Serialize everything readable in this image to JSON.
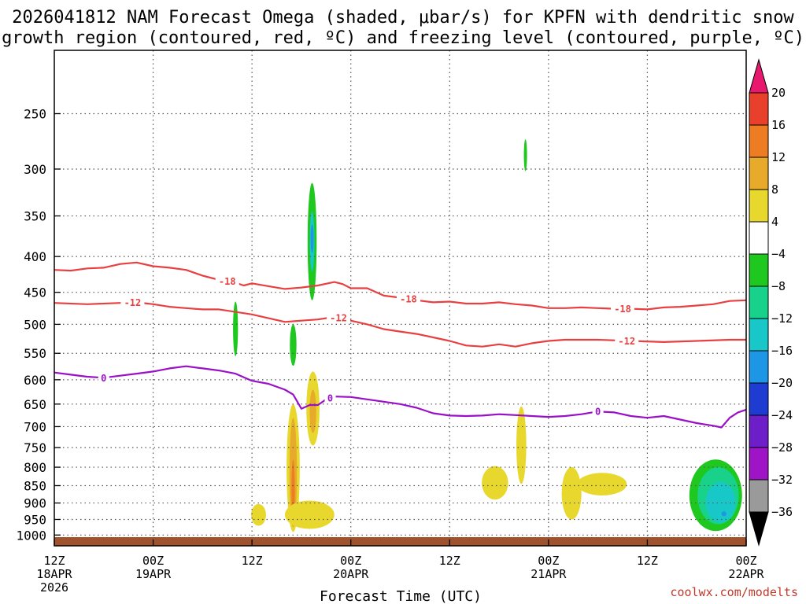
{
  "chart_data": {
    "type": "heatmap",
    "title_lines": [
      "2026041812 NAM Forecast Omega (shaded, μbar/s) for KPFN with dendritic snow",
      "growth region (contoured, red, ºC) and freezing level (contoured, purple, ºC)"
    ],
    "xlabel": "Forecast Time (UTC)",
    "credit": "coolwx.com/modelts",
    "x_range_hours": [
      0,
      84
    ],
    "y_range_hPa": [
      1025,
      200
    ],
    "x_ticks": [
      {
        "h": 0,
        "line1": "12Z",
        "line2": "18APR",
        "line3": "2026"
      },
      {
        "h": 12,
        "line1": "00Z",
        "line2": "19APR",
        "line3": ""
      },
      {
        "h": 24,
        "line1": "12Z",
        "line2": "",
        "line3": ""
      },
      {
        "h": 36,
        "line1": "00Z",
        "line2": "20APR",
        "line3": ""
      },
      {
        "h": 48,
        "line1": "12Z",
        "line2": "",
        "line3": ""
      },
      {
        "h": 60,
        "line1": "00Z",
        "line2": "21APR",
        "line3": ""
      },
      {
        "h": 72,
        "line1": "12Z",
        "line2": "",
        "line3": ""
      },
      {
        "h": 84,
        "line1": "00Z",
        "line2": "22APR",
        "line3": ""
      }
    ],
    "y_ticks": [
      250,
      300,
      350,
      400,
      450,
      500,
      550,
      600,
      650,
      700,
      750,
      800,
      850,
      900,
      950,
      1000
    ],
    "y_tick_labels": [
      "250",
      "300",
      "350",
      "400",
      "450",
      "500",
      "550",
      "600",
      "650",
      "700",
      "750",
      "800",
      "850",
      "900",
      "950",
      "1000"
    ],
    "colorbar": {
      "labels": [
        "20",
        "16",
        "12",
        "8",
        "4",
        "−4",
        "−8",
        "−12",
        "−16",
        "−20",
        "−24",
        "−28",
        "−32",
        "−36"
      ],
      "bins": [
        {
          "color": "#e8186e"
        },
        {
          "color": "#e8402a"
        },
        {
          "color": "#ee7c22"
        },
        {
          "color": "#e8aa2a"
        },
        {
          "color": "#e8d82e"
        },
        {
          "color": "#ffffff"
        },
        {
          "color": "#1ec81e"
        },
        {
          "color": "#18d28c"
        },
        {
          "color": "#18c8c8"
        },
        {
          "color": "#1e96e6"
        },
        {
          "color": "#1e3cd2"
        },
        {
          "color": "#6e1ec8"
        },
        {
          "color": "#a014c8"
        },
        {
          "color": "#9a9a9a"
        },
        {
          "color": "#000000"
        }
      ]
    },
    "contours": [
      {
        "name": "dgz-minus18",
        "value": -18,
        "color": "#e84040",
        "points": [
          [
            0,
            418
          ],
          [
            2,
            419
          ],
          [
            4,
            416
          ],
          [
            6,
            415
          ],
          [
            8,
            410
          ],
          [
            10,
            408
          ],
          [
            12,
            413
          ],
          [
            14,
            415
          ],
          [
            16,
            418
          ],
          [
            18,
            426
          ],
          [
            20,
            432
          ],
          [
            22,
            436
          ],
          [
            23,
            440
          ],
          [
            24,
            437
          ],
          [
            26,
            441
          ],
          [
            28,
            445
          ],
          [
            30,
            443
          ],
          [
            32,
            440
          ],
          [
            34,
            435
          ],
          [
            35,
            438
          ],
          [
            36,
            444
          ],
          [
            38,
            444
          ],
          [
            40,
            455
          ],
          [
            42,
            458
          ],
          [
            44,
            462
          ],
          [
            46,
            465
          ],
          [
            48,
            464
          ],
          [
            50,
            467
          ],
          [
            52,
            467
          ],
          [
            54,
            465
          ],
          [
            56,
            468
          ],
          [
            58,
            470
          ],
          [
            60,
            474
          ],
          [
            62,
            474
          ],
          [
            64,
            473
          ],
          [
            66,
            474
          ],
          [
            68,
            475
          ],
          [
            70,
            475
          ],
          [
            72,
            476
          ],
          [
            74,
            473
          ],
          [
            76,
            472
          ],
          [
            78,
            470
          ],
          [
            80,
            468
          ],
          [
            82,
            463
          ],
          [
            84,
            462
          ]
        ],
        "labels": [
          {
            "h": 21,
            "text": "-18"
          },
          {
            "h": 43,
            "text": "-18"
          },
          {
            "h": 69,
            "text": "-18"
          }
        ]
      },
      {
        "name": "dgz-minus12",
        "value": -12,
        "color": "#e84040",
        "points": [
          [
            0,
            466
          ],
          [
            4,
            468
          ],
          [
            8,
            466
          ],
          [
            10,
            465
          ],
          [
            12,
            468
          ],
          [
            14,
            472
          ],
          [
            16,
            474
          ],
          [
            18,
            476
          ],
          [
            20,
            476
          ],
          [
            22,
            480
          ],
          [
            24,
            484
          ],
          [
            26,
            490
          ],
          [
            28,
            496
          ],
          [
            30,
            494
          ],
          [
            32,
            492
          ],
          [
            34,
            488
          ],
          [
            36,
            494
          ],
          [
            38,
            500
          ],
          [
            40,
            508
          ],
          [
            42,
            512
          ],
          [
            44,
            516
          ],
          [
            46,
            522
          ],
          [
            48,
            528
          ],
          [
            50,
            536
          ],
          [
            52,
            538
          ],
          [
            54,
            534
          ],
          [
            56,
            538
          ],
          [
            58,
            532
          ],
          [
            60,
            528
          ],
          [
            62,
            526
          ],
          [
            66,
            526
          ],
          [
            70,
            528
          ],
          [
            74,
            530
          ],
          [
            78,
            528
          ],
          [
            82,
            526
          ],
          [
            84,
            526
          ]
        ],
        "labels": [
          {
            "h": 9.5,
            "text": "-12"
          },
          {
            "h": 34.5,
            "text": "-12"
          },
          {
            "h": 69.5,
            "text": "-12"
          }
        ]
      },
      {
        "name": "freezing-level",
        "value": 0,
        "color": "#9a10c8",
        "points": [
          [
            0,
            586
          ],
          [
            2,
            590
          ],
          [
            4,
            594
          ],
          [
            6,
            596
          ],
          [
            8,
            592
          ],
          [
            10,
            588
          ],
          [
            12,
            584
          ],
          [
            14,
            578
          ],
          [
            16,
            574
          ],
          [
            18,
            578
          ],
          [
            20,
            582
          ],
          [
            22,
            588
          ],
          [
            24,
            602
          ],
          [
            26,
            608
          ],
          [
            28,
            620
          ],
          [
            29,
            630
          ],
          [
            30,
            660
          ],
          [
            31,
            652
          ],
          [
            32,
            652
          ],
          [
            33,
            640
          ],
          [
            34,
            634
          ],
          [
            36,
            635
          ],
          [
            38,
            640
          ],
          [
            40,
            645
          ],
          [
            42,
            650
          ],
          [
            44,
            658
          ],
          [
            46,
            670
          ],
          [
            48,
            675
          ],
          [
            50,
            676
          ],
          [
            52,
            675
          ],
          [
            54,
            672
          ],
          [
            56,
            674
          ],
          [
            58,
            676
          ],
          [
            60,
            678
          ],
          [
            62,
            676
          ],
          [
            64,
            672
          ],
          [
            66,
            666
          ],
          [
            68,
            668
          ],
          [
            70,
            676
          ],
          [
            72,
            680
          ],
          [
            74,
            676
          ],
          [
            76,
            684
          ],
          [
            78,
            692
          ],
          [
            80,
            698
          ],
          [
            81,
            702
          ],
          [
            82,
            680
          ],
          [
            83,
            668
          ],
          [
            84,
            662
          ]
        ],
        "labels": [
          {
            "h": 6,
            "text": "0"
          },
          {
            "h": 33.5,
            "text": "0"
          },
          {
            "h": 66,
            "text": "0"
          }
        ]
      }
    ],
    "omega_regions": [
      {
        "color": "#1ec81e",
        "h": 31.3,
        "hw": 0.55,
        "p_top": 314,
        "p_bot": 462
      },
      {
        "color": "#18c8c8",
        "h": 31.3,
        "hw": 0.28,
        "p_top": 345,
        "p_bot": 420
      },
      {
        "color": "#1e96e6",
        "h": 31.3,
        "hw": 0.15,
        "p_top": 360,
        "p_bot": 395
      },
      {
        "color": "#1ec81e",
        "h": 22.0,
        "hw": 0.3,
        "p_top": 464,
        "p_bot": 555
      },
      {
        "color": "#1ec81e",
        "h": 29.0,
        "hw": 0.4,
        "p_top": 500,
        "p_bot": 573
      },
      {
        "color": "#1ec81e",
        "h": 57.2,
        "hw": 0.18,
        "p_top": 272,
        "p_bot": 302
      },
      {
        "color": "#e8d82e",
        "h": 29.0,
        "hw": 0.8,
        "p_top": 650,
        "p_bot": 990
      },
      {
        "color": "#e8aa2a",
        "h": 29.0,
        "hw": 0.45,
        "p_top": 680,
        "p_bot": 975
      },
      {
        "color": "#ee7c22",
        "h": 29.0,
        "hw": 0.2,
        "p_top": 780,
        "p_bot": 960
      },
      {
        "color": "#e8d82e",
        "h": 31.4,
        "hw": 0.8,
        "p_top": 584,
        "p_bot": 745
      },
      {
        "color": "#e8aa2a",
        "h": 31.4,
        "hw": 0.4,
        "p_top": 620,
        "p_bot": 715
      },
      {
        "color": "#e8d82e",
        "h": 31.0,
        "hw": 3.0,
        "p_top": 893,
        "p_bot": 980
      },
      {
        "color": "#e8d82e",
        "h": 24.8,
        "hw": 0.9,
        "p_top": 903,
        "p_bot": 970
      },
      {
        "color": "#e8d82e",
        "h": 53.5,
        "hw": 1.6,
        "p_top": 797,
        "p_bot": 890
      },
      {
        "color": "#e8d82e",
        "h": 56.7,
        "hw": 0.6,
        "p_top": 655,
        "p_bot": 845
      },
      {
        "color": "#e8d82e",
        "h": 62.8,
        "hw": 1.2,
        "p_top": 800,
        "p_bot": 950
      },
      {
        "color": "#e8d82e",
        "h": 66.5,
        "hw": 3.0,
        "p_top": 815,
        "p_bot": 878
      },
      {
        "color": "#1ec81e",
        "h": 80.3,
        "hw": 3.2,
        "p_top": 780,
        "p_bot": 987
      },
      {
        "color": "#18d28c",
        "h": 80.6,
        "hw": 2.5,
        "p_top": 800,
        "p_bot": 965
      },
      {
        "color": "#18c8c8",
        "h": 80.9,
        "hw": 1.8,
        "p_top": 840,
        "p_bot": 960
      },
      {
        "color": "#1e96e6",
        "h": 81.3,
        "hw": 0.3,
        "p_top": 925,
        "p_bot": 940
      }
    ]
  }
}
